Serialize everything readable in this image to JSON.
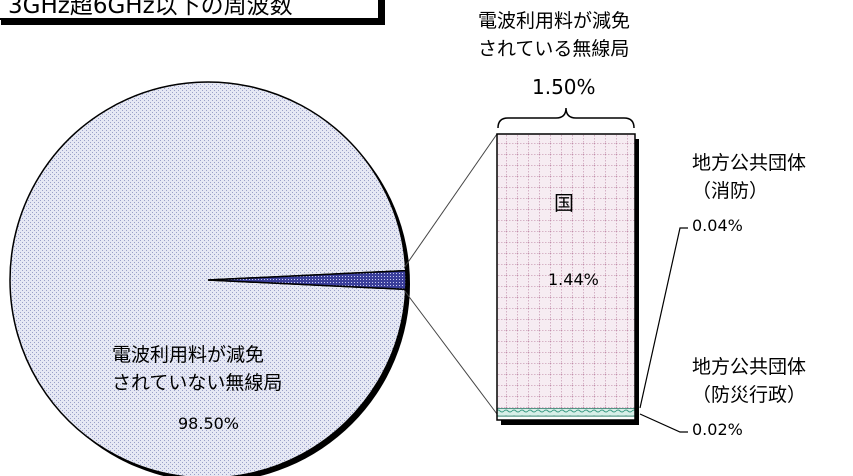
{
  "title": "3GHz超6GHz以下の周波数",
  "chart_data": {
    "type": "pie",
    "slices": [
      {
        "label": "電波利用料が減免されていない無線局",
        "value": 98.5,
        "value_label": "98.50%"
      },
      {
        "label": "電波利用料が減免されている無線局",
        "value": 1.5,
        "value_label": "1.50%"
      }
    ],
    "breakdown": {
      "of": "電波利用料が減免されている無線局",
      "type": "stacked-bar",
      "segments": [
        {
          "label": "国",
          "value": 1.44,
          "value_label": "1.44%"
        },
        {
          "label": "地方公共団体（消防）",
          "value": 0.04,
          "value_label": "0.04%"
        },
        {
          "label": "地方公共団体（防災行政）",
          "value": 0.02,
          "value_label": "0.02%"
        }
      ]
    },
    "colors": {
      "large_slice": "#e4e6f3",
      "small_slice": "#2c2f8c",
      "bar_national": "#f4e8f0",
      "bar_grid": "#a2557f",
      "bar_local": "#5fb9a5"
    }
  },
  "labels": {
    "pie_large": [
      "電波利用料が減免",
      "されていない無線局"
    ],
    "pie_large_value": "98.50%",
    "bar_header": [
      "電波利用料が減免",
      "されている無線局"
    ],
    "bar_total": "1.50%",
    "bar_national": "国",
    "bar_national_value": "1.44%",
    "fire": [
      "地方公共団体",
      "（消防）"
    ],
    "fire_value": "0.04%",
    "disaster": [
      "地方公共団体",
      "（防災行政）"
    ],
    "disaster_value": "0.02%"
  }
}
